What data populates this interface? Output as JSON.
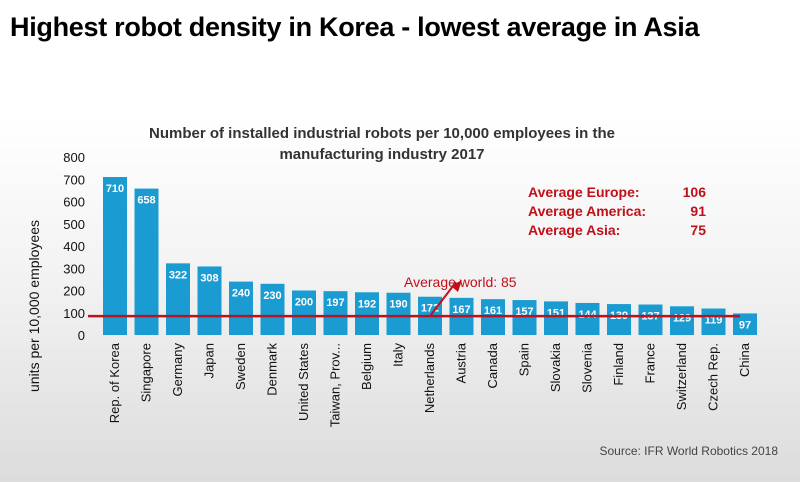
{
  "header": {
    "title": "Highest robot density in Korea - lowest average in Asia"
  },
  "chart_data": {
    "type": "bar",
    "title": "Number of installed industrial robots per 10,000 employees in the manufacturing industry 2017",
    "title_lines": [
      "Number of installed industrial robots per 10,000 employees in the",
      "manufacturing industry 2017"
    ],
    "ylabel": "units per 10,000 employees",
    "xlabel": "",
    "ylim": [
      0,
      800
    ],
    "yticks": [
      0,
      100,
      200,
      300,
      400,
      500,
      600,
      700,
      800
    ],
    "categories": [
      "Rep. of Korea",
      "Singapore",
      "Germany",
      "Japan",
      "Sweden",
      "Denmark",
      "United States",
      "Taiwan, Prov...",
      "Belgium",
      "Italy",
      "Netherlands",
      "Austria",
      "Canada",
      "Spain",
      "Slovakia",
      "Slovenia",
      "Finland",
      "France",
      "Switzerland",
      "Czech Rep.",
      "China"
    ],
    "series": [
      {
        "values": [
          710,
          658,
          322,
          308,
          240,
          230,
          200,
          197,
          192,
          190,
          172,
          167,
          161,
          157,
          151,
          144,
          139,
          137,
          129,
          119,
          97
        ]
      }
    ],
    "average_world": {
      "label": "Average world: 85",
      "value": 85
    },
    "regional_averages": [
      {
        "label": "Average Europe:",
        "value": "106"
      },
      {
        "label": "Average America:",
        "value": "91"
      },
      {
        "label": "Average Asia:",
        "value": "75"
      }
    ],
    "grid": false,
    "colors": {
      "bar": "#1a9bd1",
      "average_line": "#c0101a",
      "text_red": "#c0101a"
    }
  },
  "source": "Source: IFR World Robotics 2018"
}
